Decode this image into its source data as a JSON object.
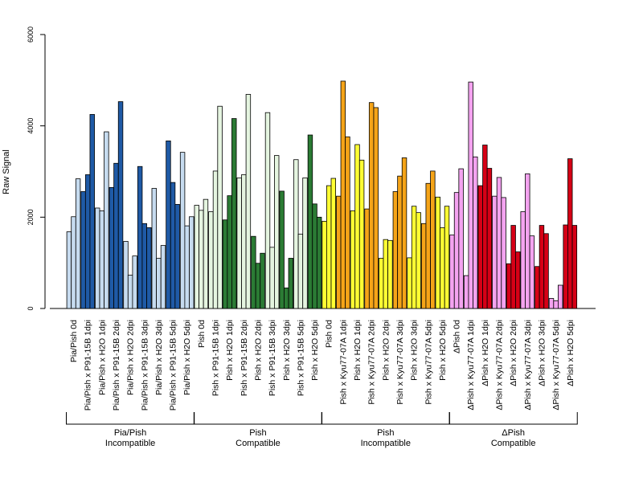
{
  "chart_data": {
    "type": "bar",
    "ylabel": "Raw Signal",
    "ylim": [
      0,
      6000
    ],
    "y_ticks": [
      "0",
      "2000",
      "4000",
      "6000"
    ],
    "categories": [
      "Pia/Pish 0d",
      "Pia/Pish x P91-15B 1dpi",
      "Pia/Pish x H2O 1dpi",
      "Pia/Pish x P91-15B 2dpi",
      "Pia/Pish x H2O 2dpi",
      "Pia/Pish x P91-15B 3dpi",
      "Pia/Pish x H2O 3dpi",
      "Pia/Pish x P91-15B 5dpi",
      "Pia/Pish x H2O 5dpi",
      "Pish 0d",
      "Pish x P91-15B 1dpi",
      "Pish x H2O 1dpi",
      "Pish x P91-15B 2dpi",
      "Pish x H2O 2dpi",
      "Pish x P91-15B 3dpi",
      "Pish x H2O 3dpi",
      "Pish x P91-15B 5dpi",
      "Pish x H2O 5dpi",
      "Pish 0d",
      "Pish x Kyu77-07A 1dpi",
      "Pish x H2O 1dpi",
      "Pish x Kyu77-07A 2dpi",
      "Pish x H2O 2dpi",
      "Pish x Kyu77-07A 3dpi",
      "Pish x H2O 3dpi",
      "Pish x Kyu77-07A 5dpi",
      "Pish x H2O 5dpi",
      "ΔPish 0d",
      "ΔPish x Kyu77-07A 1dpi",
      "ΔPish x H2O 1dpi",
      "ΔPish x Kyu77-07A 2dpi",
      "ΔPish x H2O 2dpi",
      "ΔPish x Kyu77-07A 3dpi",
      "ΔPish x H2O 3dpi",
      "ΔPish x Kyu77-07A 5dpi",
      "ΔPish x H2O 5dpi"
    ],
    "values": [
      [
        1680,
        2010,
        2840
      ],
      [
        2560,
        2930,
        4250
      ],
      [
        2200,
        2140,
        3870
      ],
      [
        2650,
        3180,
        4530
      ],
      [
        1470,
        730,
        1150
      ],
      [
        3110,
        1860,
        1770
      ],
      [
        2630,
        1100,
        1380
      ],
      [
        3670,
        2760,
        2280
      ],
      [
        3420,
        1810,
        2010
      ],
      [
        2260,
        2150,
        2390
      ],
      [
        2120,
        3010,
        4430
      ],
      [
        1940,
        2470,
        4160
      ],
      [
        2860,
        2930,
        4690
      ],
      [
        1580,
        990,
        1210
      ],
      [
        4290,
        1340,
        3350
      ],
      [
        2570,
        450,
        1100
      ],
      [
        3260,
        1630,
        2860
      ],
      [
        3800,
        2290,
        2000
      ],
      [
        1910,
        2690,
        2850
      ],
      [
        2460,
        4980,
        3760
      ],
      [
        2140,
        3590,
        3250
      ],
      [
        2180,
        4510,
        4400
      ],
      [
        1100,
        1510,
        1490
      ],
      [
        2560,
        2900,
        3300
      ],
      [
        1110,
        2240,
        2100
      ],
      [
        1860,
        2740,
        3010
      ],
      [
        2440,
        1770,
        2240
      ],
      [
        1610,
        2540,
        3060
      ],
      [
        720,
        4960,
        3320
      ],
      [
        2690,
        3580,
        3070
      ],
      [
        2460,
        2870,
        2430
      ],
      [
        980,
        1820,
        1240
      ],
      [
        2120,
        2950,
        1590
      ],
      [
        920,
        1820,
        1640
      ],
      [
        220,
        170,
        510
      ],
      [
        1830,
        3280,
        1820
      ]
    ],
    "groups": [
      {
        "line1": "Pia/Pish",
        "line2": "Incompatible"
      },
      {
        "line1": "Pish",
        "line2": "Compatible"
      },
      {
        "line1": "Pish",
        "line2": "Incompatible"
      },
      {
        "line1": "ΔPish",
        "line2": "Compatible"
      }
    ],
    "group_of_category": [
      0,
      0,
      0,
      0,
      0,
      0,
      0,
      0,
      0,
      1,
      1,
      1,
      1,
      1,
      1,
      1,
      1,
      1,
      2,
      2,
      2,
      2,
      2,
      2,
      2,
      2,
      2,
      3,
      3,
      3,
      3,
      3,
      3,
      3,
      3,
      3
    ],
    "colors": {
      "light": [
        "#c6dbef",
        "#e5f5e0",
        "#ffff33",
        "#f4a3f0"
      ],
      "dark": [
        "#1f5aa6",
        "#2b7b34",
        "#f5a418",
        "#d60016"
      ]
    },
    "grid": false,
    "legend": "none"
  }
}
